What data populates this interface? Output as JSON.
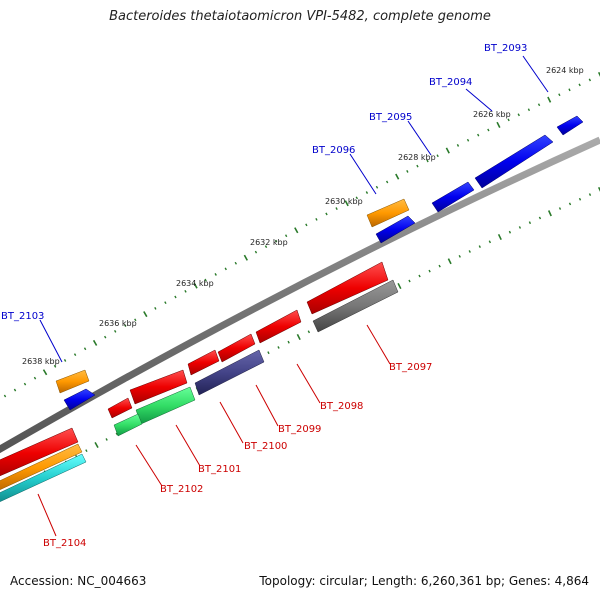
{
  "title": "Bacteroides thetaiotaomicron VPI-5482, complete genome",
  "footer": {
    "accession": "Accession: NC_004663",
    "summary": "Topology: circular; Length: 6,260,361 bp; Genes: 4,864"
  },
  "scale_labels": [
    "2624 kbp",
    "2626 kbp",
    "2628 kbp",
    "2630 kbp",
    "2632 kbp",
    "2634 kbp",
    "2636 kbp",
    "2638 kbp"
  ],
  "genes_forward": [
    {
      "name": "BT_2093",
      "color": "#0000ee"
    },
    {
      "name": "BT_2094",
      "color": "#0000ee"
    },
    {
      "name": "BT_2095",
      "color": "#0000ee"
    },
    {
      "name": "BT_2096",
      "color": "#0000ee"
    },
    {
      "name": "BT_2103",
      "color": "#0000ee"
    }
  ],
  "genes_reverse": [
    {
      "name": "BT_2097",
      "color": "#dd0000"
    },
    {
      "name": "BT_2098",
      "color": "#dd0000"
    },
    {
      "name": "BT_2099",
      "color": "#dd0000"
    },
    {
      "name": "BT_2100",
      "color": "#dd0000"
    },
    {
      "name": "BT_2101",
      "color": "#dd0000"
    },
    {
      "name": "BT_2102",
      "color": "#dd0000"
    },
    {
      "name": "BT_2104",
      "color": "#dd0000"
    }
  ],
  "colors": {
    "backbone": "#888888",
    "tick": "#2a7a2a",
    "forward_label": "#0000cc",
    "reverse_label": "#cc0000"
  }
}
